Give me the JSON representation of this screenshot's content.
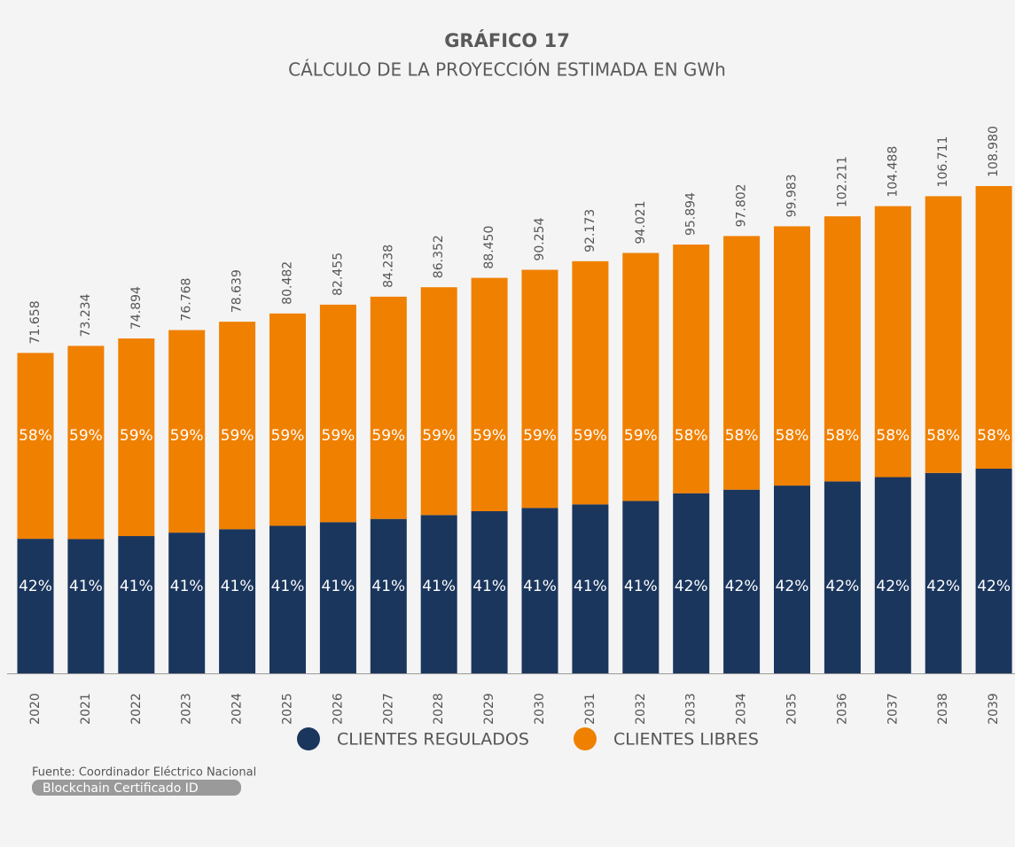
{
  "chart_data": {
    "type": "bar",
    "stacked": true,
    "title": "GRÁFICO 17",
    "subtitle": "CÁLCULO DE LA PROYECCIÓN ESTIMADA EN GWh",
    "categories": [
      "2020",
      "2021",
      "2022",
      "2023",
      "2024",
      "2025",
      "2026",
      "2027",
      "2028",
      "2029",
      "2030",
      "2031",
      "2032",
      "2033",
      "2034",
      "2035",
      "2036",
      "2037",
      "2038",
      "2039"
    ],
    "series": [
      {
        "name": "CLIENTES REGULADOS",
        "color": "#1b365d",
        "values": [
          42,
          41,
          41,
          41,
          41,
          41,
          41,
          41,
          41,
          41,
          41,
          41,
          41,
          42,
          42,
          42,
          42,
          42,
          42,
          42
        ],
        "value_labels": [
          "42%",
          "41%",
          "41%",
          "41%",
          "41%",
          "41%",
          "41%",
          "41%",
          "41%",
          "41%",
          "41%",
          "41%",
          "41%",
          "42%",
          "42%",
          "42%",
          "42%",
          "42%",
          "42%",
          "42%"
        ]
      },
      {
        "name": "CLIENTES LIBRES",
        "color": "#f08000",
        "values": [
          58,
          59,
          59,
          59,
          59,
          59,
          59,
          59,
          59,
          59,
          59,
          59,
          59,
          58,
          58,
          58,
          58,
          58,
          58,
          58
        ],
        "value_labels": [
          "58%",
          "59%",
          "59%",
          "59%",
          "59%",
          "59%",
          "59%",
          "59%",
          "59%",
          "59%",
          "59%",
          "59%",
          "59%",
          "58%",
          "58%",
          "58%",
          "58%",
          "58%",
          "58%",
          "58%"
        ]
      }
    ],
    "totals": {
      "values": [
        71658,
        73234,
        74894,
        76768,
        78639,
        80482,
        82455,
        84238,
        86352,
        88450,
        90254,
        92173,
        94021,
        95894,
        97802,
        99983,
        102211,
        104488,
        106711,
        108980
      ],
      "value_labels": [
        "71.658",
        "73.234",
        "74.894",
        "76.768",
        "78.639",
        "80.482",
        "82.455",
        "84.238",
        "86.352",
        "88.450",
        "90.254",
        "92.173",
        "94.021",
        "95.894",
        "97.802",
        "99.983",
        "102.211",
        "104.488",
        "106.711",
        "108.980"
      ]
    },
    "source": "Fuente: Coordinador Eléctrico Nacional",
    "badge": "Blockchain Certificado ID"
  }
}
